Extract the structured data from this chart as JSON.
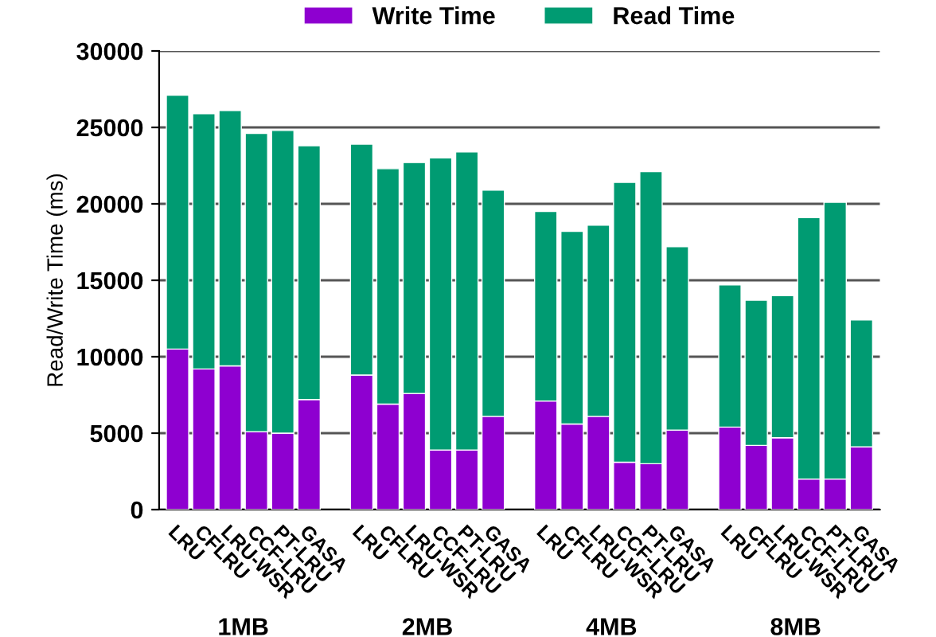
{
  "chart_data": {
    "type": "bar",
    "stacked": true,
    "ylabel": "Read/Write Time (ms)",
    "categories": [
      "LRU",
      "CFLRU",
      "LRU-WSR",
      "CCF-LRU",
      "PT-LRU",
      "GASA",
      "LRU",
      "CFLRU",
      "LRU-WSR",
      "CCF-LRU",
      "PT-LRU",
      "GASA",
      "LRU",
      "CFLRU",
      "LRU-WSR",
      "CCF-LRU",
      "PT-LRU",
      "GASA",
      "LRU",
      "CFLRU",
      "LRU-WSR",
      "CCF-LRU",
      "PT-LRU",
      "GASA"
    ],
    "series": [
      {
        "name": "Write Time",
        "color": "#8e00d0",
        "values": [
          10500,
          9200,
          9400,
          5100,
          5000,
          7200,
          8800,
          6900,
          7600,
          3900,
          3900,
          6100,
          7100,
          5600,
          6100,
          3100,
          3000,
          5200,
          5400,
          4200,
          4700,
          2000,
          2000,
          4100
        ]
      },
      {
        "name": "Read Time",
        "color": "#009b72",
        "values": [
          16600,
          16700,
          16700,
          19500,
          19800,
          16600,
          15100,
          15400,
          15100,
          19100,
          19500,
          14800,
          12400,
          12600,
          12500,
          18300,
          19100,
          12000,
          9300,
          9500,
          9300,
          17100,
          18100,
          8300
        ]
      }
    ],
    "annotations": [
      "1MB",
      "2MB",
      "4MB",
      "8MB"
    ],
    "ylim": [
      0,
      30000
    ],
    "yticks": [
      0,
      5000,
      10000,
      15000,
      20000,
      25000,
      30000
    ],
    "grid": "y",
    "legend": "top"
  }
}
